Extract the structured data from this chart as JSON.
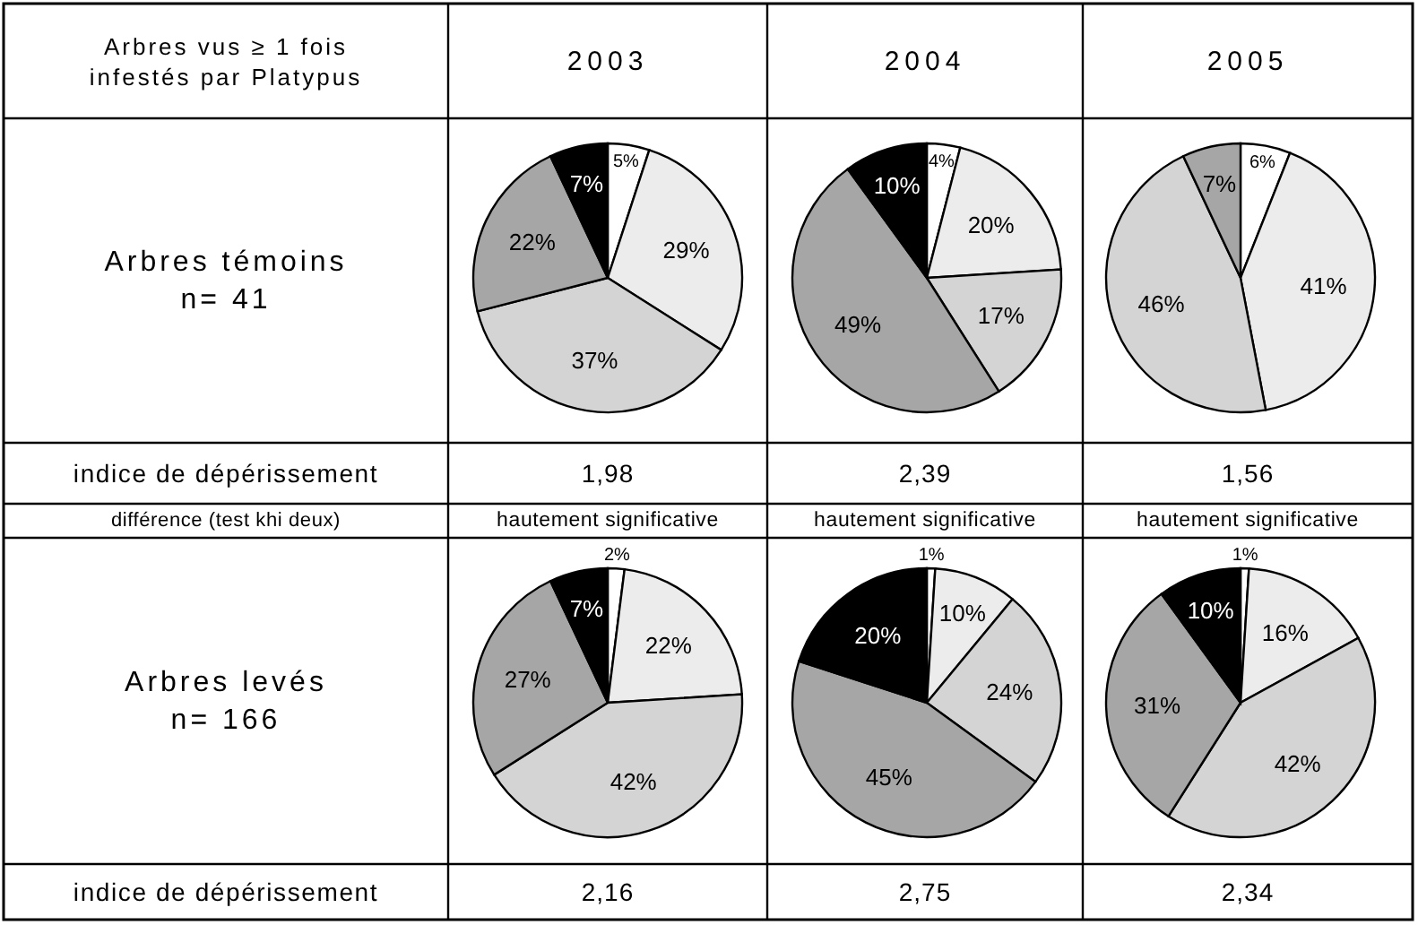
{
  "chart_data": [
    {
      "type": "other",
      "annotations": [
        "Arbres vus ≥ 1 fois\ninfestés par Platypus",
        "2003",
        "2004",
        "2005",
        "Arbres témoins\nn= 41",
        "indice de dépérissement",
        "1,98",
        "2,39",
        "1,56",
        "différence (test khi deux)",
        "hautement significative",
        "hautement significative",
        "hautement significative",
        "Arbres levés\nn= 166",
        "indice de dépérissement",
        "2,16",
        "2,75",
        "2,34"
      ]
    },
    {
      "type": "pie",
      "categories": [
        null,
        null,
        null,
        null,
        null
      ],
      "values": [
        5,
        29,
        37,
        22,
        7
      ],
      "value_labels": [
        "5%",
        "29%",
        "37%",
        "22%",
        "7%"
      ],
      "colors": [
        "#ffffff",
        "#ececec",
        "#d4d4d4",
        "#a6a6a6",
        "#000000"
      ]
    },
    {
      "type": "pie",
      "categories": [
        null,
        null,
        null,
        null,
        null
      ],
      "values": [
        4,
        20,
        17,
        49,
        10
      ],
      "value_labels": [
        "4%",
        "20%",
        "17%",
        "49%",
        "10%"
      ],
      "colors": [
        "#ffffff",
        "#ececec",
        "#d4d4d4",
        "#a6a6a6",
        "#000000"
      ]
    },
    {
      "type": "pie",
      "categories": [
        null,
        null,
        null,
        null
      ],
      "values": [
        6,
        41,
        46,
        7
      ],
      "value_labels": [
        "6%",
        "41%",
        "46%",
        "7%"
      ],
      "colors": [
        "#ffffff",
        "#ececec",
        "#d4d4d4",
        "#a6a6a6"
      ]
    },
    {
      "type": "pie",
      "categories": [
        null,
        null,
        null,
        null,
        null
      ],
      "values": [
        2,
        22,
        42,
        27,
        7
      ],
      "value_labels": [
        "2%",
        "22%",
        "42%",
        "27%",
        "7%"
      ],
      "colors": [
        "#ffffff",
        "#ececec",
        "#d4d4d4",
        "#a6a6a6",
        "#000000"
      ]
    },
    {
      "type": "pie",
      "categories": [
        null,
        null,
        null,
        null,
        null
      ],
      "values": [
        1,
        10,
        24,
        45,
        20
      ],
      "value_labels": [
        "1%",
        "10%",
        "24%",
        "45%",
        "20%"
      ],
      "colors": [
        "#ffffff",
        "#ececec",
        "#d4d4d4",
        "#a6a6a6",
        "#000000"
      ]
    },
    {
      "type": "pie",
      "categories": [
        null,
        null,
        null,
        null,
        null
      ],
      "values": [
        1,
        16,
        42,
        31,
        10
      ],
      "value_labels": [
        "1%",
        "16%",
        "42%",
        "31%",
        "10%"
      ],
      "colors": [
        "#ffffff",
        "#ececec",
        "#d4d4d4",
        "#a6a6a6",
        "#000000"
      ]
    }
  ]
}
